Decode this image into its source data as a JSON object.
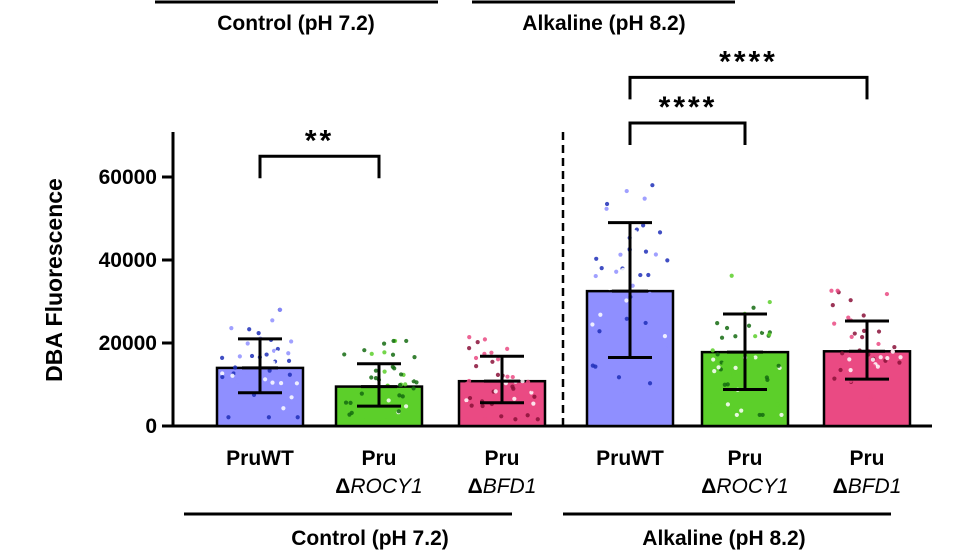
{
  "chart_data": {
    "type": "bar",
    "ylabel": "DBA Fluorescence",
    "ylim": [
      0,
      70000
    ],
    "yticks": [
      0,
      20000,
      40000,
      60000
    ],
    "yticklabels": [
      "0",
      "20000",
      "40000",
      "60000"
    ],
    "groups": [
      {
        "name": "Control (pH 7.2)"
      },
      {
        "name": "Alkaline (pH 8.2)"
      }
    ],
    "top_labels": [
      "Control (pH 7.2)",
      "Alkaline (pH 8.2)"
    ],
    "bars": [
      {
        "line1": "PruWT",
        "prefix": "",
        "italic": "",
        "value": 14000,
        "err_low": 8000,
        "err_high": 21000,
        "color": "#8f8fff",
        "dot": "#1f2fb8",
        "group": 0
      },
      {
        "line1": "Pru",
        "prefix": "Δ",
        "italic": "ROCY1",
        "value": 9500,
        "err_low": 4800,
        "err_high": 15000,
        "color": "#5ccf2a",
        "dot": "#146b10",
        "group": 0
      },
      {
        "line1": "Pru",
        "prefix": "Δ",
        "italic": "BFD1",
        "value": 10800,
        "err_low": 5600,
        "err_high": 16800,
        "color": "#ea4a83",
        "dot": "#8a1038",
        "group": 0
      },
      {
        "line1": "PruWT",
        "prefix": "",
        "italic": "",
        "value": 32500,
        "err_low": 16500,
        "err_high": 49000,
        "color": "#8f8fff",
        "dot": "#1f2fb8",
        "group": 1
      },
      {
        "line1": "Pru",
        "prefix": "Δ",
        "italic": "ROCY1",
        "value": 17800,
        "err_low": 8800,
        "err_high": 27000,
        "color": "#5ccf2a",
        "dot": "#146b10",
        "group": 1
      },
      {
        "line1": "Pru",
        "prefix": "Δ",
        "italic": "BFD1",
        "value": 18000,
        "err_low": 11300,
        "err_high": 25300,
        "color": "#ea4a83",
        "dot": "#8a1038",
        "group": 1
      }
    ],
    "significance": [
      {
        "from": 0,
        "to": 1,
        "label": "**",
        "y_data": 65000
      },
      {
        "from": 3,
        "to": 4,
        "label": "****",
        "y_data": 73000
      },
      {
        "from": 3,
        "to": 5,
        "label": "****",
        "y_data": 84000
      }
    ]
  }
}
